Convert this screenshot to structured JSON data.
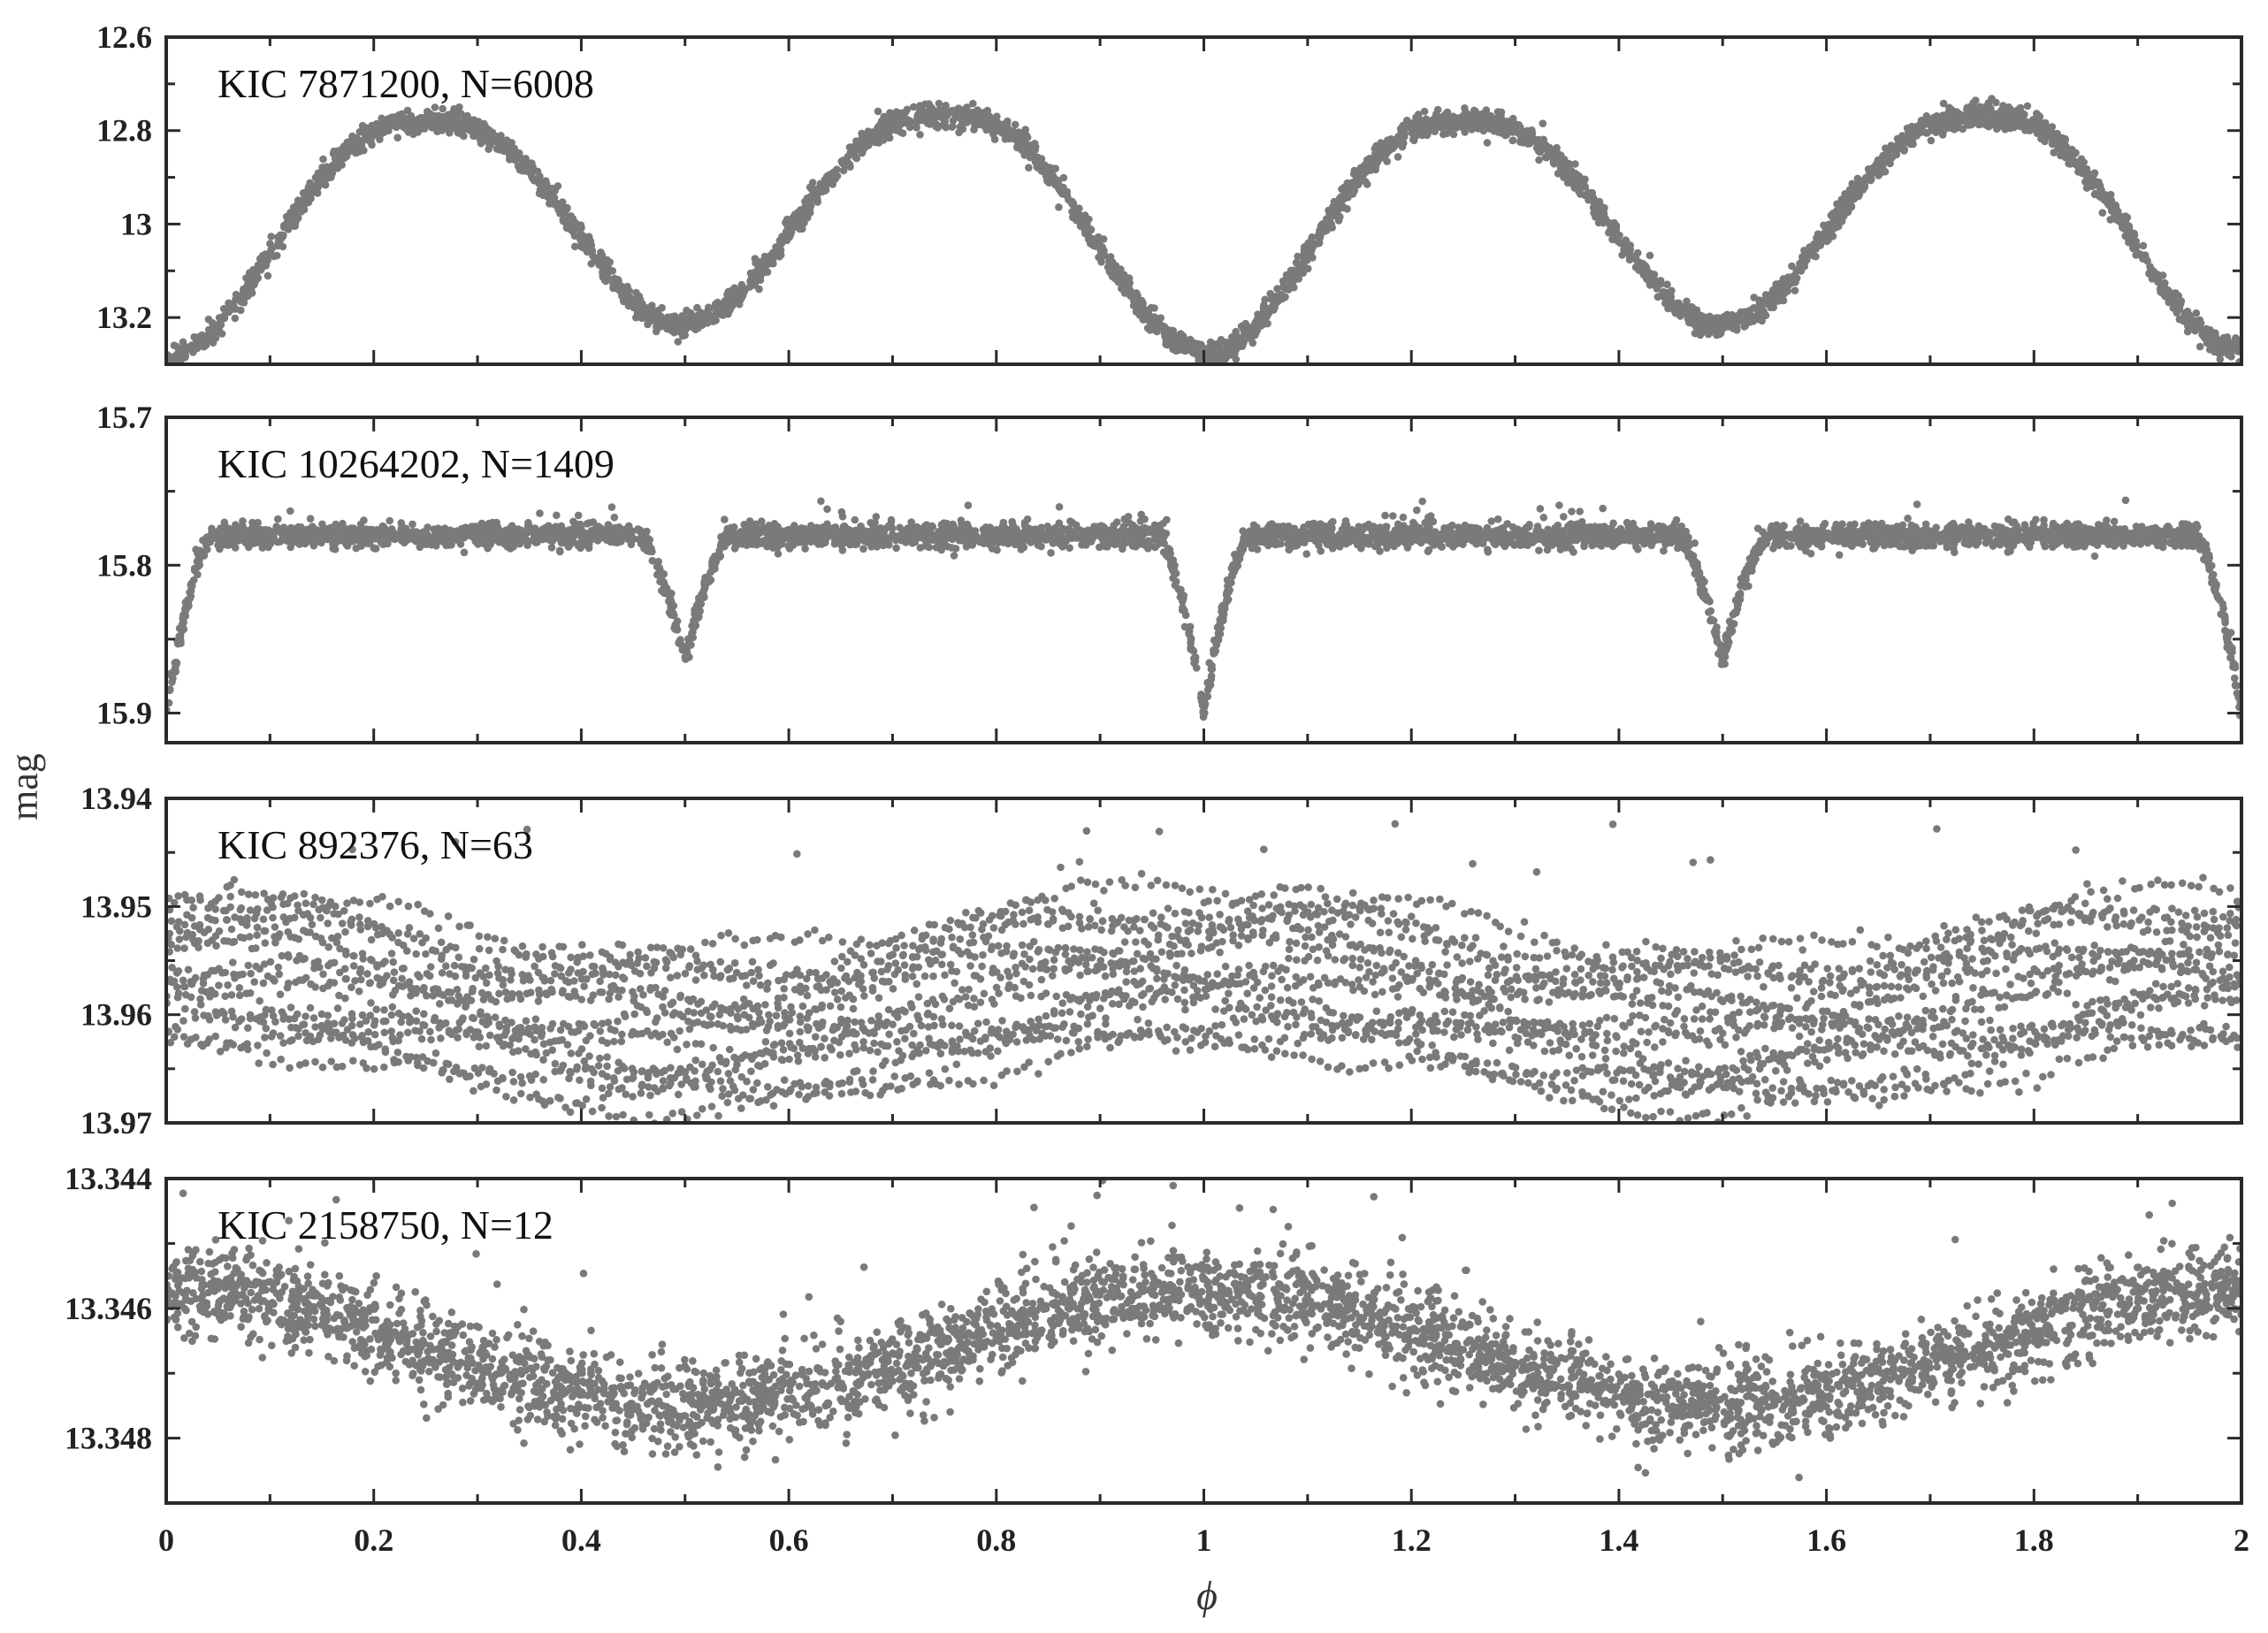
{
  "figure": {
    "ylabel": "mag",
    "xlabel": "ϕ"
  },
  "chart_data": [
    {
      "type": "scatter",
      "title": "KIC 7871200, N=6008",
      "xlim": [
        0,
        2
      ],
      "ylim": [
        12.6,
        13.3
      ],
      "y_inverted": true,
      "x_ticks": [
        0,
        0.2,
        0.4,
        0.6,
        0.8,
        1,
        1.2,
        1.4,
        1.6,
        1.8,
        2
      ],
      "y_ticks": [
        12.6,
        12.8,
        13,
        13.2
      ],
      "y_tick_labels": [
        "12.6",
        "12.8",
        "13",
        "13.2"
      ],
      "point_color": "#7a7a7a",
      "model": {
        "kind": "contact_binary",
        "base_mag": 12.77,
        "secondary_depth": 0.44,
        "primary_depth": 0.5,
        "width": 0.5,
        "max_mag_phase0_25": 12.78,
        "max_mag_phase0_75": 12.77,
        "scatter": 0.012
      },
      "series": [
        {
          "x": [
            0,
            0.05,
            0.1,
            0.15,
            0.2,
            0.25,
            0.3,
            0.35,
            0.4,
            0.45,
            0.5,
            0.55,
            0.6,
            0.65,
            0.7,
            0.75,
            0.8,
            0.85,
            0.9,
            0.95,
            1,
            1.05,
            1.1,
            1.15,
            1.2,
            1.25,
            1.3,
            1.35,
            1.4,
            1.45,
            1.5,
            1.55,
            1.6,
            1.65,
            1.7,
            1.75,
            1.8,
            1.85,
            1.9,
            1.95,
            2
          ],
          "y": [
            13.26,
            13.13,
            12.98,
            12.87,
            12.8,
            12.78,
            12.8,
            12.87,
            12.98,
            13.11,
            13.21,
            13.11,
            12.98,
            12.86,
            12.79,
            12.77,
            12.79,
            12.86,
            12.98,
            13.13,
            13.26,
            13.13,
            12.98,
            12.87,
            12.8,
            12.78,
            12.8,
            12.87,
            12.98,
            13.11,
            13.21,
            13.11,
            12.98,
            12.86,
            12.79,
            12.77,
            12.79,
            12.86,
            12.98,
            13.13,
            13.26
          ]
        }
      ]
    },
    {
      "type": "scatter",
      "title": "KIC 10264202, N=1409",
      "xlim": [
        0,
        2
      ],
      "ylim": [
        15.7,
        15.92
      ],
      "y_inverted": true,
      "x_ticks": [
        0,
        0.2,
        0.4,
        0.6,
        0.8,
        1,
        1.2,
        1.4,
        1.6,
        1.8,
        2
      ],
      "y_ticks": [
        15.7,
        15.8,
        15.9
      ],
      "y_tick_labels": [
        "15.7",
        "15.8",
        "15.9"
      ],
      "point_color": "#7a7a7a",
      "model": {
        "kind": "detached_binary",
        "out_of_eclipse_mag": 15.78,
        "primary_min_mag": 15.9,
        "secondary_min_mag": 15.865,
        "primary_half_width": 0.045,
        "secondary_half_width": 0.045,
        "scatter": 0.004
      },
      "series": [
        {
          "x": [
            0,
            0.05,
            0.2,
            0.45,
            0.47,
            0.5,
            0.53,
            0.55,
            0.7,
            0.95,
            0.97,
            1,
            1.03,
            1.05,
            1.2,
            1.45,
            1.47,
            1.5,
            1.53,
            1.55,
            1.7,
            1.95,
            1.97,
            2
          ],
          "y": [
            15.9,
            15.78,
            15.779,
            15.78,
            15.82,
            15.865,
            15.82,
            15.78,
            15.779,
            15.78,
            15.84,
            15.9,
            15.84,
            15.78,
            15.779,
            15.78,
            15.82,
            15.865,
            15.82,
            15.78,
            15.779,
            15.78,
            15.84,
            15.9
          ]
        }
      ]
    },
    {
      "type": "scatter",
      "title": "KIC 892376, N=63",
      "xlim": [
        0,
        2
      ],
      "ylim": [
        13.94,
        13.97
      ],
      "y_inverted": true,
      "x_ticks": [
        0,
        0.2,
        0.4,
        0.6,
        0.8,
        1,
        1.2,
        1.4,
        1.6,
        1.8,
        2
      ],
      "y_ticks": [
        13.94,
        13.95,
        13.96,
        13.97
      ],
      "y_tick_labels": [
        "13.94",
        "13.95",
        "13.96",
        "13.97"
      ],
      "point_color": "#7a7a7a",
      "model": {
        "kind": "sinusoid_bands",
        "mean_mag": 13.9585,
        "amplitude": 0.003,
        "band_halfwidth": 0.007,
        "bands": 16
      },
      "series": [
        {
          "x": [
            0,
            0.25,
            0.5,
            0.75,
            1,
            1.25,
            1.5,
            1.75,
            2
          ],
          "y": [
            13.9555,
            13.9585,
            13.9615,
            13.9585,
            13.9555,
            13.9585,
            13.9615,
            13.9585,
            13.9555
          ]
        }
      ]
    },
    {
      "type": "scatter",
      "title": "KIC 2158750, N=12",
      "xlim": [
        0,
        2
      ],
      "ylim": [
        13.344,
        13.349
      ],
      "y_inverted": true,
      "x_ticks": [
        0,
        0.2,
        0.4,
        0.6,
        0.8,
        1,
        1.2,
        1.4,
        1.6,
        1.8,
        2
      ],
      "y_ticks": [
        13.344,
        13.346,
        13.348
      ],
      "y_tick_labels": [
        "13.344",
        "13.346",
        "13.348"
      ],
      "point_color": "#7a7a7a",
      "model": {
        "kind": "sinusoid",
        "mean_mag": 13.3466,
        "amplitude": 0.0009,
        "scatter": 0.00035
      },
      "series": [
        {
          "x": [
            0,
            0.25,
            0.5,
            0.75,
            1,
            1.25,
            1.5,
            1.75,
            2
          ],
          "y": [
            13.3457,
            13.3466,
            13.3475,
            13.3466,
            13.3457,
            13.3466,
            13.3475,
            13.3466,
            13.3457
          ]
        }
      ]
    }
  ]
}
